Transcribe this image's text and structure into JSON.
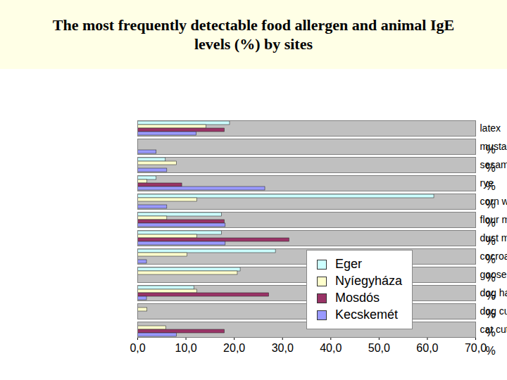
{
  "chart_data": {
    "type": "bar",
    "orientation": "horizontal",
    "title": "The most frequently detectable food allergen and animal IgE levels (%) by sites",
    "xlabel": "%",
    "categories": [
      "latex",
      "mustard",
      "sesam seed",
      "rye",
      "corn wheat",
      "flour mite",
      "dust mite",
      "cocroach",
      "goose feather",
      "dog hair",
      "dog cutaneous tissue",
      "cat cutaneous tissue"
    ],
    "series": [
      {
        "name": "Eger",
        "color": "#ccffff",
        "values": [
          19.1,
          0,
          5.8,
          3.9,
          61.4,
          17.4,
          17.4,
          28.6,
          21.3,
          11.7,
          0,
          0
        ]
      },
      {
        "name": "Nyíegyháza",
        "color": "#ffffcc",
        "values": [
          14.2,
          0,
          8.1,
          2.0,
          12.3,
          6.1,
          12.3,
          10.3,
          20.7,
          12.3,
          2.0,
          5.9
        ]
      },
      {
        "name": "Mosdós",
        "color": "#993366",
        "values": [
          18.0,
          0,
          0,
          9.2,
          0,
          18.0,
          31.4,
          0,
          0,
          27.2,
          0,
          18.0
        ]
      },
      {
        "name": "Kecskemét",
        "color": "#9999ff",
        "values": [
          12.2,
          3.9,
          6.1,
          26.4,
          6.1,
          18.2,
          18.2,
          1.9,
          0,
          1.9,
          0,
          8.1
        ]
      }
    ],
    "xlim": [
      0,
      70
    ],
    "xticks": [
      {
        "value": 0,
        "label": "0,0"
      },
      {
        "value": 10,
        "label": "10,0"
      },
      {
        "value": 20,
        "label": "20,0"
      },
      {
        "value": 30,
        "label": "30,0"
      },
      {
        "value": 40,
        "label": "40,0"
      },
      {
        "value": 50,
        "label": "50,0"
      },
      {
        "value": 60,
        "label": "60,0"
      },
      {
        "value": 70,
        "label": "70,0"
      }
    ],
    "legend": "lower right",
    "grid": false
  }
}
